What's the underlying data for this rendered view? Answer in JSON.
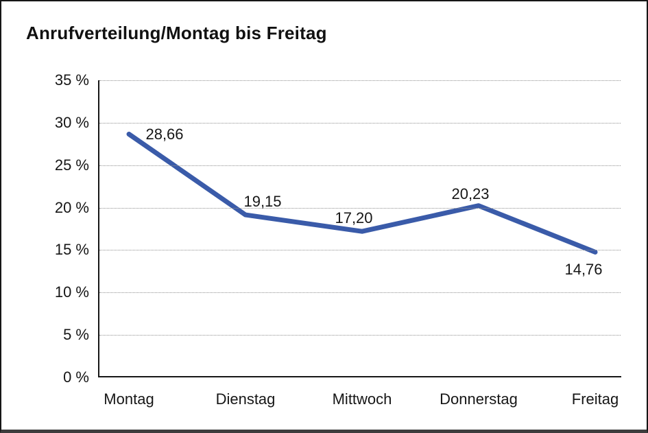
{
  "header": {
    "title": "Anrufverteilung/Montag bis Freitag"
  },
  "chart_data": {
    "type": "line",
    "title": "Anrufverteilung/Montag bis Freitag",
    "categories": [
      "Montag",
      "Dienstag",
      "Mittwoch",
      "Donnerstag",
      "Freitag"
    ],
    "values": [
      28.66,
      19.15,
      17.2,
      20.23,
      14.76
    ],
    "value_labels": [
      "28,66",
      "19,15",
      "17,20",
      "20,23",
      "14,76"
    ],
    "xlabel": "",
    "ylabel": "",
    "ylim": [
      0,
      35
    ],
    "ytick_interval": 5,
    "ytick_labels": [
      "0 %",
      "5 %",
      "10 %",
      "15 %",
      "20 %",
      "25 %",
      "30 %",
      "35 %"
    ],
    "grid": "horizontal-dotted",
    "legend": "none",
    "colors": {
      "line": "#3A5BA9",
      "text": "#161616",
      "grid": "#8f8f8f",
      "axis": "#161616",
      "background": "#ffffff",
      "frame_border": "#161616"
    }
  }
}
